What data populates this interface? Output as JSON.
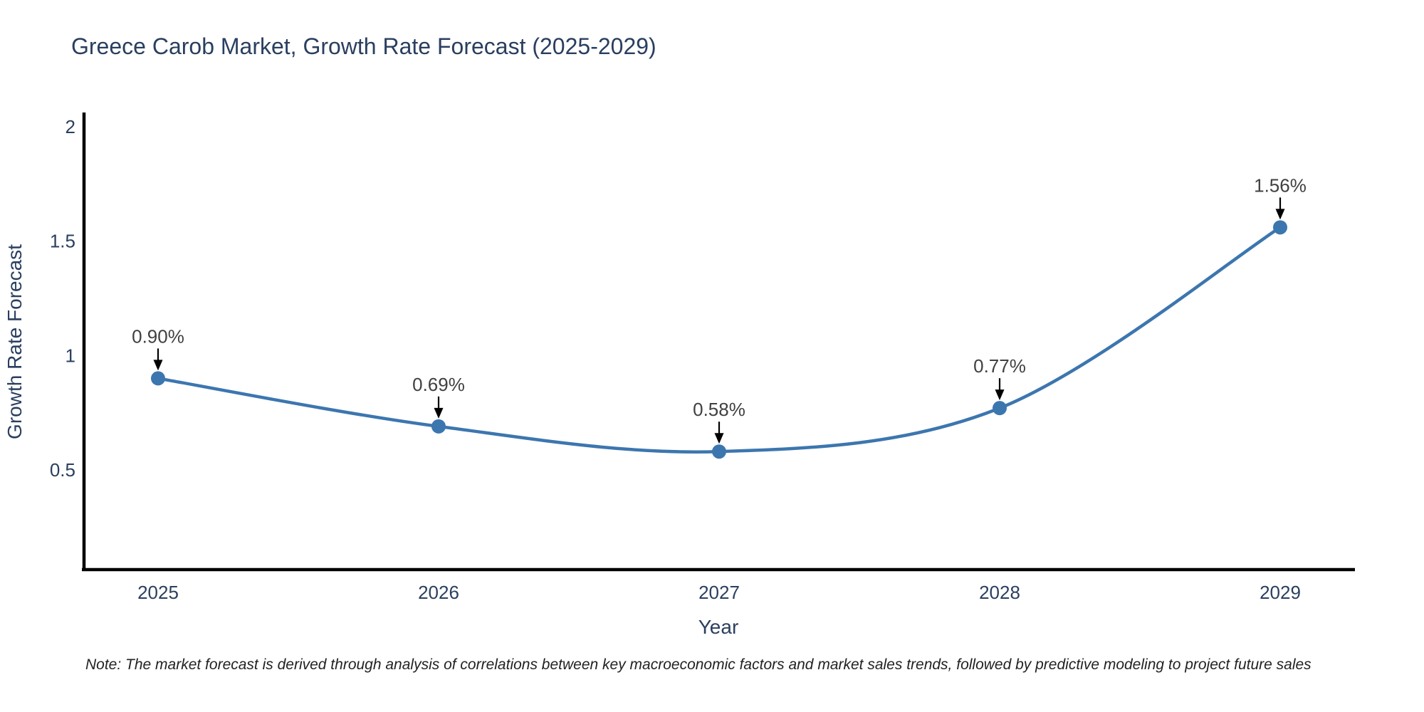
{
  "chart_data": {
    "type": "line",
    "title": "Greece Carob Market, Growth Rate Forecast (2025-2029)",
    "xlabel": "Year",
    "ylabel": "Growth Rate Forecast",
    "categories": [
      "2025",
      "2026",
      "2027",
      "2028",
      "2029"
    ],
    "values": [
      0.9,
      0.69,
      0.58,
      0.77,
      1.56
    ],
    "point_labels": [
      "0.90%",
      "0.69%",
      "0.58%",
      "0.77%",
      "1.56%"
    ],
    "y_ticks": [
      0.5,
      1,
      1.5,
      2
    ],
    "ylim": [
      0.064,
      2.056
    ],
    "grid": false,
    "legend_position": "none",
    "line_color": "#3c76af",
    "marker_color": "#3c76af",
    "arrow_color": "#000000",
    "axis_color": "#000000",
    "text_color": "#2a3f5f",
    "line_shape": "spline",
    "marker_size": 10
  },
  "note": "Note: The market forecast is derived through analysis of correlations between key macroeconomic factors and market sales trends, followed by predictive modeling to project future sales"
}
